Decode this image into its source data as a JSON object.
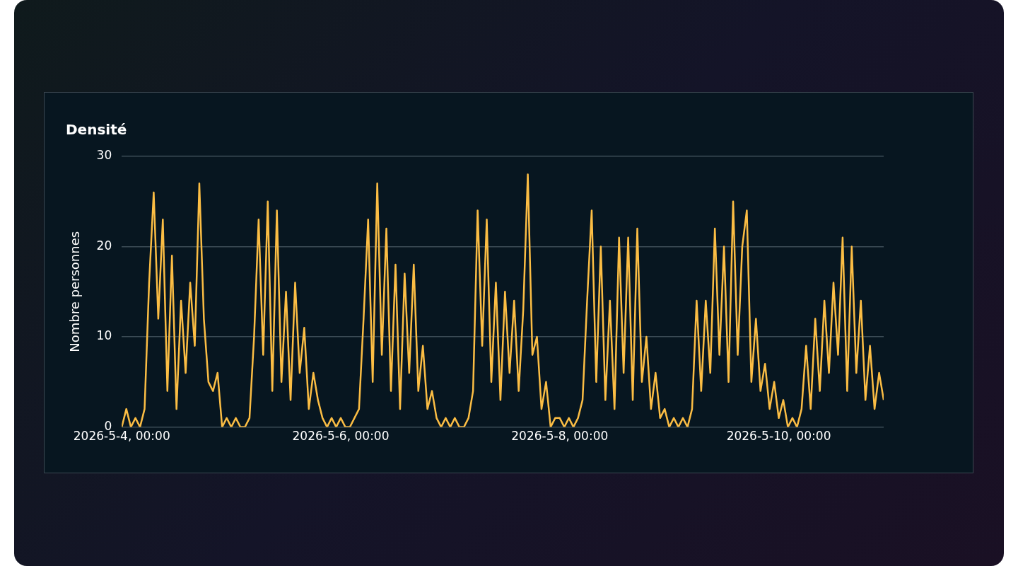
{
  "chart_data": {
    "type": "line",
    "title": "Densité",
    "ylabel": "Nombre personnes",
    "x": [
      "2026-05-04T00:00",
      "2026-05-04T01:00",
      "2026-05-04T02:00",
      "2026-05-04T03:00",
      "2026-05-04T04:00",
      "2026-05-04T05:00",
      "2026-05-04T06:00",
      "2026-05-04T07:00",
      "2026-05-04T08:00",
      "2026-05-04T09:00",
      "2026-05-04T10:00",
      "2026-05-04T11:00",
      "2026-05-04T12:00",
      "2026-05-04T13:00",
      "2026-05-04T14:00",
      "2026-05-04T15:00",
      "2026-05-04T16:00",
      "2026-05-04T17:00",
      "2026-05-04T18:00",
      "2026-05-04T19:00",
      "2026-05-04T20:00",
      "2026-05-04T21:00",
      "2026-05-04T22:00",
      "2026-05-04T23:00",
      "2026-05-05T00:00",
      "2026-05-05T01:00",
      "2026-05-05T02:00",
      "2026-05-05T03:00",
      "2026-05-05T04:00",
      "2026-05-05T05:00",
      "2026-05-05T06:00",
      "2026-05-05T07:00",
      "2026-05-05T08:00",
      "2026-05-05T09:00",
      "2026-05-05T10:00",
      "2026-05-05T11:00",
      "2026-05-05T12:00",
      "2026-05-05T13:00",
      "2026-05-05T14:00",
      "2026-05-05T15:00",
      "2026-05-05T16:00",
      "2026-05-05T17:00",
      "2026-05-05T18:00",
      "2026-05-05T19:00",
      "2026-05-05T20:00",
      "2026-05-05T21:00",
      "2026-05-05T22:00",
      "2026-05-05T23:00",
      "2026-05-06T00:00",
      "2026-05-06T01:00",
      "2026-05-06T02:00",
      "2026-05-06T03:00",
      "2026-05-06T04:00",
      "2026-05-06T05:00",
      "2026-05-06T06:00",
      "2026-05-06T07:00",
      "2026-05-06T08:00",
      "2026-05-06T09:00",
      "2026-05-06T10:00",
      "2026-05-06T11:00",
      "2026-05-06T12:00",
      "2026-05-06T13:00",
      "2026-05-06T14:00",
      "2026-05-06T15:00",
      "2026-05-06T16:00",
      "2026-05-06T17:00",
      "2026-05-06T18:00",
      "2026-05-06T19:00",
      "2026-05-06T20:00",
      "2026-05-06T21:00",
      "2026-05-06T22:00",
      "2026-05-06T23:00",
      "2026-05-07T00:00",
      "2026-05-07T01:00",
      "2026-05-07T02:00",
      "2026-05-07T03:00",
      "2026-05-07T04:00",
      "2026-05-07T05:00",
      "2026-05-07T06:00",
      "2026-05-07T07:00",
      "2026-05-07T08:00",
      "2026-05-07T09:00",
      "2026-05-07T10:00",
      "2026-05-07T11:00",
      "2026-05-07T12:00",
      "2026-05-07T13:00",
      "2026-05-07T14:00",
      "2026-05-07T15:00",
      "2026-05-07T16:00",
      "2026-05-07T17:00",
      "2026-05-07T18:00",
      "2026-05-07T19:00",
      "2026-05-07T20:00",
      "2026-05-07T21:00",
      "2026-05-07T22:00",
      "2026-05-07T23:00",
      "2026-05-08T00:00",
      "2026-05-08T01:00",
      "2026-05-08T02:00",
      "2026-05-08T03:00",
      "2026-05-08T04:00",
      "2026-05-08T05:00",
      "2026-05-08T06:00",
      "2026-05-08T07:00",
      "2026-05-08T08:00",
      "2026-05-08T09:00",
      "2026-05-08T10:00",
      "2026-05-08T11:00",
      "2026-05-08T12:00",
      "2026-05-08T13:00",
      "2026-05-08T14:00",
      "2026-05-08T15:00",
      "2026-05-08T16:00",
      "2026-05-08T17:00",
      "2026-05-08T18:00",
      "2026-05-08T19:00",
      "2026-05-08T20:00",
      "2026-05-08T21:00",
      "2026-05-08T22:00",
      "2026-05-08T23:00",
      "2026-05-09T00:00",
      "2026-05-09T01:00",
      "2026-05-09T02:00",
      "2026-05-09T03:00",
      "2026-05-09T04:00",
      "2026-05-09T05:00",
      "2026-05-09T06:00",
      "2026-05-09T07:00",
      "2026-05-09T08:00",
      "2026-05-09T09:00",
      "2026-05-09T10:00",
      "2026-05-09T11:00",
      "2026-05-09T12:00",
      "2026-05-09T13:00",
      "2026-05-09T14:00",
      "2026-05-09T15:00",
      "2026-05-09T16:00",
      "2026-05-09T17:00",
      "2026-05-09T18:00",
      "2026-05-09T19:00",
      "2026-05-09T20:00",
      "2026-05-09T21:00",
      "2026-05-09T22:00",
      "2026-05-09T23:00",
      "2026-05-10T00:00",
      "2026-05-10T01:00",
      "2026-05-10T02:00",
      "2026-05-10T03:00",
      "2026-05-10T04:00",
      "2026-05-10T05:00",
      "2026-05-10T06:00",
      "2026-05-10T07:00",
      "2026-05-10T08:00",
      "2026-05-10T09:00",
      "2026-05-10T10:00",
      "2026-05-10T11:00",
      "2026-05-10T12:00",
      "2026-05-10T13:00",
      "2026-05-10T14:00",
      "2026-05-10T15:00",
      "2026-05-10T16:00",
      "2026-05-10T17:00",
      "2026-05-10T18:00",
      "2026-05-10T19:00",
      "2026-05-10T20:00",
      "2026-05-10T21:00",
      "2026-05-10T22:00",
      "2026-05-10T23:00"
    ],
    "series": [
      {
        "color": "#fbbd44",
        "values": [
          0,
          2,
          0,
          1,
          0,
          2,
          16,
          26,
          12,
          23,
          4,
          19,
          2,
          14,
          6,
          16,
          9,
          27,
          12,
          5,
          4,
          6,
          0,
          1,
          0,
          1,
          0,
          0,
          1,
          10,
          23,
          8,
          25,
          4,
          24,
          5,
          15,
          3,
          16,
          6,
          11,
          2,
          6,
          3,
          1,
          0,
          1,
          0,
          1,
          0,
          0,
          1,
          2,
          12,
          23,
          5,
          27,
          8,
          22,
          4,
          18,
          2,
          17,
          6,
          18,
          4,
          9,
          2,
          4,
          1,
          0,
          1,
          0,
          1,
          0,
          0,
          1,
          4,
          24,
          9,
          23,
          5,
          16,
          3,
          15,
          6,
          14,
          4,
          13,
          28,
          8,
          10,
          2,
          5,
          0,
          1,
          1,
          0,
          1,
          0,
          1,
          3,
          14,
          24,
          5,
          20,
          3,
          14,
          2,
          21,
          6,
          21,
          3,
          22,
          5,
          10,
          2,
          6,
          1,
          2,
          0,
          1,
          0,
          1,
          0,
          2,
          14,
          4,
          14,
          6,
          22,
          8,
          20,
          5,
          25,
          8,
          20,
          24,
          5,
          12,
          4,
          7,
          2,
          5,
          1,
          3,
          0,
          1,
          0,
          2,
          9,
          2,
          12,
          4,
          14,
          6,
          16,
          8,
          21,
          4,
          20,
          6,
          14,
          3,
          9,
          2,
          6,
          3
        ]
      }
    ],
    "xlim": [
      "2026-05-04T00:00",
      "2026-05-10T23:00"
    ],
    "xticks": [
      {
        "value": "2026-05-04T00:00",
        "label": "2026-5-4, 00:00"
      },
      {
        "value": "2026-05-06T00:00",
        "label": "2026-5-6, 00:00"
      },
      {
        "value": "2026-05-08T00:00",
        "label": "2026-5-8, 00:00"
      },
      {
        "value": "2026-05-10T00:00",
        "label": "2026-5-10, 00:00"
      }
    ],
    "ylim": [
      0,
      30
    ],
    "yticks": [
      0,
      10,
      20,
      30
    ],
    "grid": "y",
    "legend": false,
    "marker": "none",
    "line_style": "solid"
  }
}
